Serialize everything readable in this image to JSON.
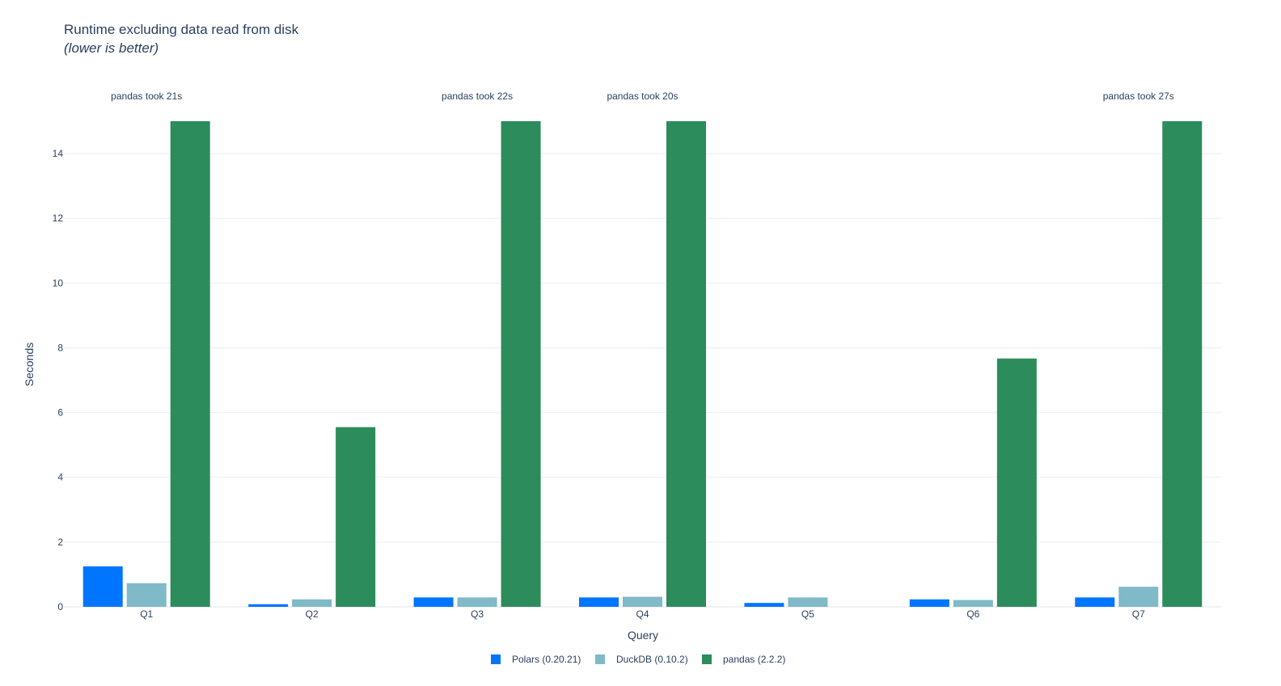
{
  "chart_data": {
    "type": "bar",
    "title": "Runtime excluding data read from disk",
    "subtitle": "(lower is better)",
    "xlabel": "Query",
    "ylabel": "Seconds",
    "categories": [
      "Q1",
      "Q2",
      "Q3",
      "Q4",
      "Q5",
      "Q6",
      "Q7"
    ],
    "ylim": [
      0,
      15
    ],
    "yticks": [
      0,
      2,
      4,
      6,
      8,
      10,
      12,
      14
    ],
    "grid": true,
    "legend_position": "bottom-center",
    "series": [
      {
        "name": "Polars (0.20.21)",
        "color": "#0075ff",
        "values": [
          1.25,
          0.08,
          0.29,
          0.29,
          0.12,
          0.23,
          0.29
        ]
      },
      {
        "name": "DuckDB (0.10.2)",
        "color": "#80b9c8",
        "values": [
          0.73,
          0.23,
          0.29,
          0.31,
          0.29,
          0.21,
          0.62
        ]
      },
      {
        "name": "pandas (2.2.2)",
        "color": "#2c8c5b",
        "values": [
          15,
          5.55,
          15,
          15,
          null,
          7.67,
          15
        ]
      }
    ],
    "annotations": [
      {
        "category": "Q1",
        "text": "pandas took 21s"
      },
      {
        "category": "Q3",
        "text": "pandas took 22s"
      },
      {
        "category": "Q4",
        "text": "pandas took 20s"
      },
      {
        "category": "Q7",
        "text": "pandas took 27s"
      }
    ]
  }
}
